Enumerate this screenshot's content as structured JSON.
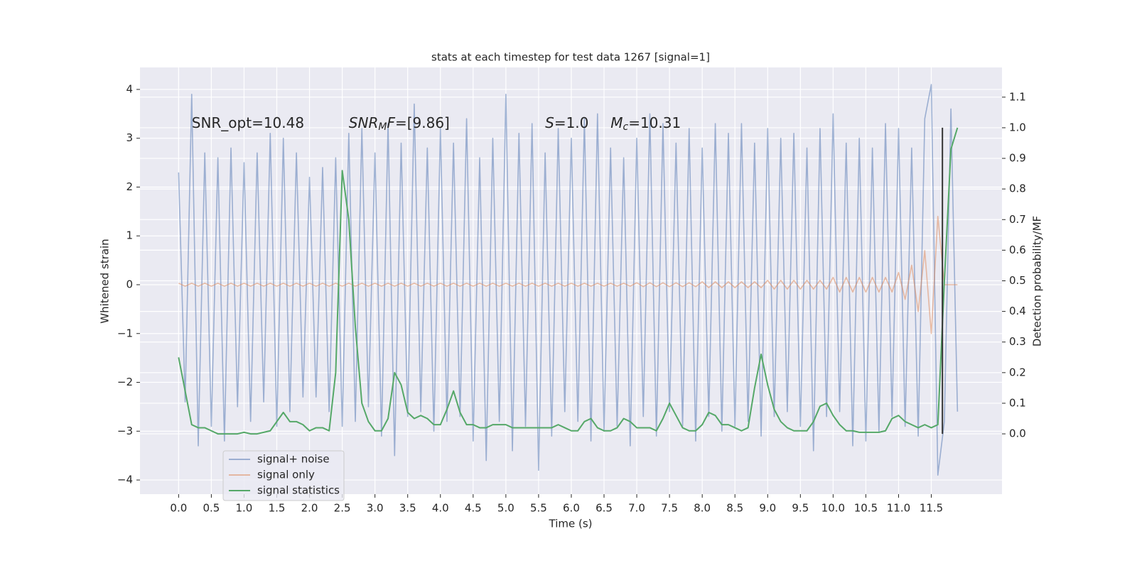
{
  "chart_data": {
    "type": "line",
    "title": "stats at each timestep for test data 1267 [signal=1]",
    "xlabel": "Time (s)",
    "ylabel": "Whitened strain",
    "y2label": "Detection probability/MF",
    "xlim": [
      -0.59,
      12.58
    ],
    "ylim": [
      -4.29,
      4.45
    ],
    "y2lim": [
      -0.197,
      1.197
    ],
    "xticks": [
      {
        "value": 0,
        "label": "0.0"
      },
      0.5,
      {
        "value": 1,
        "label": "1.0"
      },
      1.5,
      {
        "value": 2,
        "label": "2.0"
      },
      2.5,
      {
        "value": 3,
        "label": "3.0"
      },
      3.5,
      {
        "value": 4,
        "label": "4.0"
      },
      4.5,
      {
        "value": 5,
        "label": "5.0"
      },
      5.5,
      {
        "value": 6,
        "label": "6.0"
      },
      6.5,
      {
        "value": 7,
        "label": "7.0"
      },
      7.5,
      {
        "value": 8,
        "label": "8.0"
      },
      8.5,
      {
        "value": 9,
        "label": "9.0"
      },
      9.5,
      {
        "value": 10,
        "label": "10.0"
      },
      10.5,
      {
        "value": 11,
        "label": "11.0"
      },
      11.5
    ],
    "yticks": [
      {
        "value": -4,
        "label": "−4"
      },
      {
        "value": -3,
        "label": "−3"
      },
      {
        "value": -2,
        "label": "−2"
      },
      {
        "value": -1,
        "label": "−1"
      },
      0,
      1,
      2,
      3,
      4
    ],
    "y2ticks": [
      {
        "value": 0,
        "label": "0.0"
      },
      0.1,
      0.2,
      0.3,
      0.4,
      0.5,
      0.6,
      0.7,
      0.8,
      0.9,
      {
        "value": 1,
        "label": "1.0"
      },
      1.1
    ],
    "grid": true,
    "legend": "lower left",
    "x": [
      0,
      0.1,
      0.2,
      0.3,
      0.4,
      0.5,
      0.6,
      0.7,
      0.8,
      0.9,
      1,
      1.1,
      1.2,
      1.3,
      1.4,
      1.5,
      1.6,
      1.7,
      1.8,
      1.9,
      2,
      2.1,
      2.2,
      2.3,
      2.4,
      2.5,
      2.6,
      2.7,
      2.8,
      2.9,
      3,
      3.1,
      3.2,
      3.3,
      3.4,
      3.5,
      3.6,
      3.7,
      3.8,
      3.9,
      4,
      4.1,
      4.2,
      4.3,
      4.4,
      4.5,
      4.6,
      4.7,
      4.8,
      4.9,
      5,
      5.1,
      5.2,
      5.3,
      5.4,
      5.5,
      5.6,
      5.7,
      5.8,
      5.9,
      6,
      6.1,
      6.2,
      6.3,
      6.4,
      6.5,
      6.6,
      6.7,
      6.8,
      6.9,
      7,
      7.1,
      7.2,
      7.3,
      7.4,
      7.5,
      7.6,
      7.7,
      7.8,
      7.9,
      8,
      8.1,
      8.2,
      8.3,
      8.4,
      8.5,
      8.6,
      8.7,
      8.8,
      8.9,
      9,
      9.1,
      9.2,
      9.3,
      9.4,
      9.5,
      9.6,
      9.7,
      9.8,
      9.9,
      10,
      10.1,
      10.2,
      10.3,
      10.4,
      10.5,
      10.6,
      10.7,
      10.8,
      10.9,
      11,
      11.1,
      11.2,
      11.3,
      11.4,
      11.5,
      11.6,
      11.7,
      11.8,
      11.9
    ],
    "series": [
      {
        "name": "signal+ noise",
        "color": "#4c72b0",
        "opacity": 0.5,
        "axis": "y",
        "values": [
          2.3,
          -2.4,
          3.9,
          -3.3,
          2.7,
          -2.9,
          2.6,
          -3.2,
          2.8,
          -2.5,
          2.5,
          -2.8,
          2.7,
          -2.4,
          3.1,
          -2.9,
          3.0,
          -2.6,
          2.7,
          -2.3,
          2.2,
          -2.3,
          2.4,
          -2.6,
          2.6,
          -2.9,
          3.1,
          -2.8,
          3.2,
          -2.5,
          2.7,
          -3.1,
          3.3,
          -3.5,
          2.9,
          -2.7,
          3.7,
          -2.6,
          2.8,
          -3.0,
          3.2,
          -2.8,
          2.9,
          -2.7,
          3.4,
          -3.2,
          2.6,
          -3.6,
          3.0,
          -2.8,
          3.9,
          -3.4,
          3.1,
          -2.9,
          3.3,
          -3.8,
          2.7,
          -3.1,
          3.2,
          -2.6,
          3.0,
          -2.8,
          3.4,
          -3.2,
          3.5,
          -3.0,
          2.8,
          -2.9,
          2.6,
          -3.3,
          3.0,
          -2.7,
          3.5,
          -3.1,
          3.3,
          -2.6,
          2.9,
          -2.9,
          3.2,
          -3.2,
          2.8,
          -2.7,
          3.3,
          -3.0,
          3.1,
          -2.9,
          3.3,
          -2.8,
          2.9,
          -3.1,
          3.2,
          -2.7,
          3.0,
          -2.6,
          3.1,
          -2.9,
          2.8,
          -3.4,
          3.2,
          -2.7,
          3.5,
          -2.6,
          2.9,
          -3.3,
          3.0,
          -3.2,
          2.8,
          -3.0,
          3.3,
          -2.7,
          3.2,
          -2.9,
          2.8,
          -3.1,
          3.4,
          4.1,
          -3.9,
          -2.8,
          3.6,
          -2.6
        ]
      },
      {
        "name": "signal only",
        "color": "#dd8452",
        "opacity": 0.5,
        "axis": "y",
        "values": [
          0.03,
          -0.03,
          0.03,
          -0.03,
          0.03,
          -0.03,
          0.03,
          -0.03,
          0.03,
          -0.03,
          0.03,
          -0.03,
          0.03,
          -0.03,
          0.03,
          -0.03,
          0.03,
          -0.03,
          0.03,
          -0.03,
          0.03,
          -0.03,
          0.03,
          -0.03,
          0.03,
          -0.03,
          0.03,
          -0.03,
          0.03,
          -0.03,
          0.03,
          -0.03,
          0.03,
          -0.03,
          0.03,
          -0.03,
          0.03,
          -0.03,
          0.03,
          -0.03,
          0.03,
          -0.03,
          0.03,
          -0.03,
          0.03,
          -0.03,
          0.03,
          -0.03,
          0.03,
          -0.03,
          0.03,
          -0.03,
          0.03,
          -0.03,
          0.03,
          -0.03,
          0.03,
          -0.03,
          0.03,
          -0.03,
          0.03,
          -0.03,
          0.03,
          -0.03,
          0.03,
          -0.03,
          0.03,
          -0.03,
          0.03,
          -0.03,
          0.04,
          -0.04,
          0.04,
          -0.04,
          0.04,
          -0.04,
          0.04,
          -0.04,
          0.04,
          -0.04,
          0.06,
          -0.06,
          0.06,
          -0.06,
          0.06,
          -0.06,
          0.06,
          -0.06,
          0.06,
          -0.06,
          0.09,
          -0.09,
          0.09,
          -0.09,
          0.09,
          -0.09,
          0.09,
          -0.09,
          0.09,
          -0.09,
          0.15,
          -0.15,
          0.15,
          -0.15,
          0.15,
          -0.15,
          0.15,
          -0.15,
          0.15,
          -0.15,
          0.25,
          -0.3,
          0.4,
          -0.55,
          0.7,
          -1.0,
          1.4,
          0,
          0,
          0
        ]
      },
      {
        "name": "signal statistics",
        "color": "#55a868",
        "opacity": 1,
        "axis": "y2",
        "values": [
          0.25,
          0.14,
          0.03,
          0.02,
          0.02,
          0.01,
          0,
          0,
          0,
          0,
          0.005,
          0,
          0,
          0.005,
          0.01,
          0.04,
          0.07,
          0.04,
          0.04,
          0.03,
          0.01,
          0.02,
          0.02,
          0.01,
          0.2,
          0.86,
          0.7,
          0.35,
          0.1,
          0.04,
          0.01,
          0.01,
          0.05,
          0.2,
          0.16,
          0.07,
          0.05,
          0.06,
          0.05,
          0.03,
          0.03,
          0.08,
          0.14,
          0.07,
          0.03,
          0.03,
          0.02,
          0.02,
          0.03,
          0.03,
          0.03,
          0.02,
          0.02,
          0.02,
          0.02,
          0.02,
          0.02,
          0.02,
          0.03,
          0.02,
          0.01,
          0.01,
          0.04,
          0.05,
          0.02,
          0.01,
          0.01,
          0.02,
          0.05,
          0.04,
          0.02,
          0.02,
          0.02,
          0.01,
          0.05,
          0.1,
          0.06,
          0.02,
          0.01,
          0.01,
          0.03,
          0.07,
          0.06,
          0.03,
          0.03,
          0.02,
          0.01,
          0.02,
          0.15,
          0.26,
          0.16,
          0.08,
          0.04,
          0.02,
          0.01,
          0.01,
          0.01,
          0.04,
          0.09,
          0.1,
          0.06,
          0.03,
          0.01,
          0.01,
          0.005,
          0.005,
          0.005,
          0.005,
          0.01,
          0.05,
          0.06,
          0.04,
          0.03,
          0.02,
          0.03,
          0.02,
          0.03,
          0.5,
          0.93,
          1.0
        ]
      }
    ],
    "vlines": [
      {
        "x": 11.67,
        "ymin": 0,
        "ymax": 1.0,
        "axis": "y2",
        "color": "#333333"
      }
    ],
    "annotations": [
      {
        "x": 0.2,
        "y": 3.3,
        "parts": [
          {
            "text": "SNR_opt=10.48"
          }
        ]
      },
      {
        "x": 2.6,
        "y": 3.3,
        "parts": [
          {
            "text": "SNR",
            "style": "italic"
          },
          {
            "text": "M",
            "style": "sub"
          },
          {
            "text": "F",
            "style": "italic"
          },
          {
            "text": "=[9.86]"
          }
        ]
      },
      {
        "x": 5.6,
        "y": 3.3,
        "parts": [
          {
            "text": "S",
            "style": "italic"
          },
          {
            "text": "=1.0"
          }
        ]
      },
      {
        "x": 6.6,
        "y": 3.3,
        "parts": [
          {
            "text": "M",
            "style": "italic"
          },
          {
            "text": "c",
            "style": "sub"
          },
          {
            "text": "=10.31"
          }
        ]
      }
    ]
  }
}
